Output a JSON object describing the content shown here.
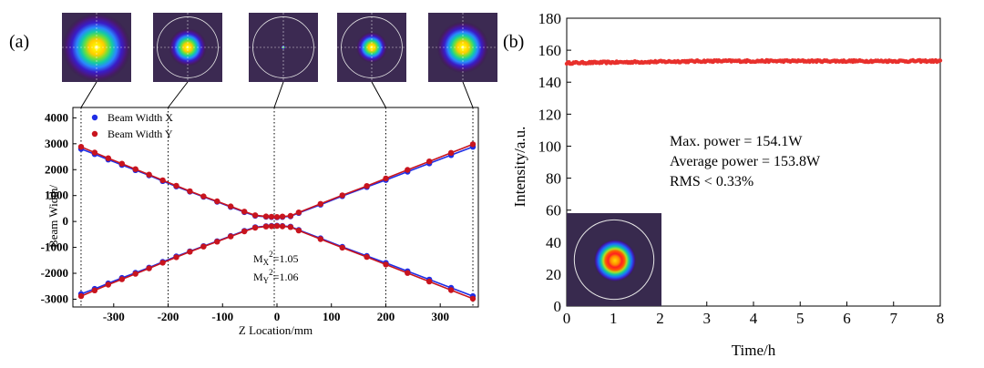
{
  "figure": {
    "panel_a_label": "(a)",
    "panel_b_label": "(b)"
  },
  "chart_data": [
    {
      "id": "a",
      "type": "scatter",
      "title": "",
      "xlabel": "Z Location/mm",
      "ylabel": "Beam Width/",
      "xlim": [
        -375,
        370
      ],
      "ylim": [
        -3300,
        4400
      ],
      "xticks": [
        -300,
        -200,
        -100,
        0,
        100,
        200,
        300
      ],
      "yticks": [
        -3000,
        -2000,
        -1000,
        0,
        1000,
        2000,
        3000,
        4000
      ],
      "grid": false,
      "legend_position": "top-left",
      "marker_lines_x": [
        -360,
        -200,
        -5,
        200,
        360
      ],
      "series": [
        {
          "name": "Beam Width X",
          "color": "#1f2ee6",
          "x": [
            -360,
            -335,
            -310,
            -285,
            -260,
            -235,
            -210,
            -185,
            -160,
            -135,
            -110,
            -85,
            -60,
            -40,
            -20,
            -10,
            0,
            10,
            25,
            40,
            80,
            120,
            165,
            200,
            240,
            280,
            320,
            360
          ],
          "upper": [
            2800,
            2600,
            2390,
            2180,
            1980,
            1780,
            1560,
            1350,
            1150,
            950,
            760,
            560,
            360,
            220,
            180,
            170,
            160,
            175,
            200,
            330,
            650,
            980,
            1330,
            1600,
            1920,
            2240,
            2560,
            2880
          ],
          "lower": [
            -2800,
            -2600,
            -2390,
            -2180,
            -1980,
            -1780,
            -1560,
            -1350,
            -1150,
            -950,
            -760,
            -560,
            -360,
            -220,
            -180,
            -170,
            -160,
            -175,
            -200,
            -330,
            -650,
            -980,
            -1330,
            -1600,
            -1920,
            -2240,
            -2560,
            -2880
          ]
        },
        {
          "name": "Beam Width Y",
          "color": "#c8141e",
          "x": [
            -360,
            -335,
            -310,
            -285,
            -260,
            -235,
            -210,
            -185,
            -160,
            -135,
            -110,
            -85,
            -60,
            -40,
            -20,
            -10,
            0,
            10,
            25,
            40,
            80,
            120,
            165,
            200,
            240,
            280,
            320,
            360
          ],
          "upper": [
            2880,
            2660,
            2440,
            2230,
            2020,
            1810,
            1590,
            1380,
            1170,
            970,
            780,
            580,
            380,
            240,
            195,
            185,
            175,
            190,
            215,
            350,
            680,
            1010,
            1370,
            1660,
            1990,
            2320,
            2650,
            2980
          ],
          "lower": [
            -2880,
            -2660,
            -2440,
            -2230,
            -2020,
            -1810,
            -1590,
            -1380,
            -1170,
            -970,
            -780,
            -580,
            -380,
            -240,
            -195,
            -185,
            -175,
            -190,
            -215,
            -350,
            -680,
            -1010,
            -1370,
            -1660,
            -1990,
            -2320,
            -2650,
            -2980
          ]
        }
      ],
      "annotations": {
        "mx": {
          "base": "M",
          "sub": "X",
          "sup": "2",
          "rest": "=1.05"
        },
        "my": {
          "base": "M",
          "sub": "Y",
          "sup": "2",
          "rest": "=1.06"
        }
      },
      "beam_profile_insets": [
        {
          "label": "far-field profile at -360 mm",
          "z": -360,
          "size": 1.0,
          "circle": false
        },
        {
          "label": "profile at -200 mm",
          "z": -200,
          "size": 0.55,
          "circle": true
        },
        {
          "label": "waist profile near 0 mm",
          "z": -5,
          "size": 0.06,
          "circle": true
        },
        {
          "label": "profile at 200 mm",
          "z": 200,
          "size": 0.45,
          "circle": true
        },
        {
          "label": "far-field profile at 360 mm",
          "z": 360,
          "size": 0.75,
          "circle": false
        }
      ]
    },
    {
      "id": "b",
      "type": "scatter",
      "title": "",
      "xlabel": "Time/h",
      "ylabel": "Intensity/a.u.",
      "xlim": [
        0,
        8
      ],
      "ylim": [
        0,
        180
      ],
      "xticks": [
        0,
        1,
        2,
        3,
        4,
        5,
        6,
        7,
        8
      ],
      "yticks": [
        0,
        20,
        40,
        60,
        80,
        100,
        120,
        140,
        160,
        180
      ],
      "grid": false,
      "series": [
        {
          "name": "Power",
          "color": "#e8302c",
          "mean_start": 152.0,
          "mean_end": 153.2,
          "noise": 0.6,
          "n_points": 330
        }
      ],
      "annotations": [
        "Max. power = 154.1W",
        "Average power = 153.8W",
        "RMS < 0.33%"
      ],
      "inset": {
        "label": "beam profile inset",
        "circle": true,
        "size": 0.45
      }
    }
  ]
}
